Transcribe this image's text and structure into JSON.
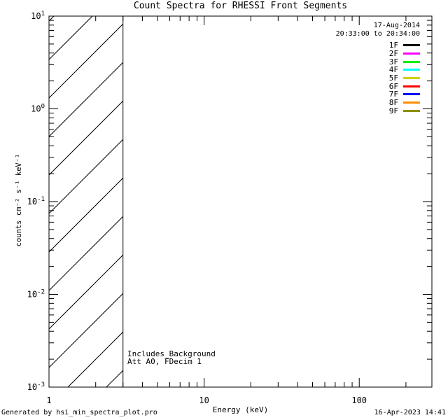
{
  "header": {
    "title": "Count Spectra for RHESSI Front Segments",
    "date": "17-Aug-2014",
    "time_range": "20:33:00 to 20:34:00"
  },
  "annotations": {
    "line1": "Includes_Background",
    "line2": "Att A0, FDecim 1"
  },
  "legend": {
    "entries": [
      {
        "label": "1F",
        "color": "#000000"
      },
      {
        "label": "2F",
        "color": "#ff00ff"
      },
      {
        "label": "3F",
        "color": "#00ee00"
      },
      {
        "label": "4F",
        "color": "#00ffff"
      },
      {
        "label": "5F",
        "color": "#d2d200"
      },
      {
        "label": "6F",
        "color": "#ff0000"
      },
      {
        "label": "7F",
        "color": "#0000ff"
      },
      {
        "label": "8F",
        "color": "#ff8c00"
      },
      {
        "label": "9F",
        "color": "#8f8f00"
      }
    ]
  },
  "footer": {
    "generated_by": "Generated by hsi_min_spectra_plot.pro",
    "timestamp": "16-Apr-2023 14:41"
  },
  "chart_data": {
    "type": "line",
    "title": "Count Spectra for RHESSI Front Segments",
    "xlabel": "Energy (keV)",
    "ylabel": "counts cm⁻² s⁻¹ keV⁻¹",
    "xscale": "log",
    "yscale": "log",
    "xlim": [
      1,
      294
    ],
    "ylim": [
      0.001,
      10
    ],
    "x_major_ticks": [
      1,
      10,
      100
    ],
    "x_major_labels": [
      "1",
      "10",
      "100"
    ],
    "y_major_ticks": [
      10,
      1,
      0.1,
      0.01,
      0.001
    ],
    "y_major_exponents": [
      "1",
      "0",
      "-1",
      "-2",
      "-3"
    ],
    "grid": false,
    "legend_position": "upper right",
    "hatched_region": {
      "x_start": 1,
      "x_end": 3,
      "pattern": "diagonal-lines-45deg"
    },
    "annotations": [
      "Includes_Background",
      "Att A0, FDecim 1"
    ],
    "series": [
      {
        "name": "1F",
        "color": "#000000",
        "values": []
      },
      {
        "name": "2F",
        "color": "#ff00ff",
        "values": []
      },
      {
        "name": "3F",
        "color": "#00ee00",
        "values": []
      },
      {
        "name": "4F",
        "color": "#00ffff",
        "values": []
      },
      {
        "name": "5F",
        "color": "#d2d200",
        "values": []
      },
      {
        "name": "6F",
        "color": "#ff0000",
        "values": []
      },
      {
        "name": "7F",
        "color": "#0000ff",
        "values": []
      },
      {
        "name": "8F",
        "color": "#ff8c00",
        "values": []
      },
      {
        "name": "9F",
        "color": "#8f8f00",
        "values": []
      }
    ]
  }
}
